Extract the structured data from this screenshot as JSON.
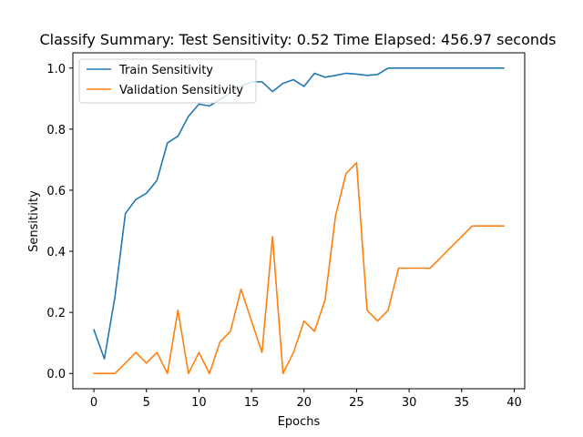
{
  "chart_data": {
    "type": "line",
    "title": "Classify Summary: Test Sensitivity: 0.52 Time Elapsed: 456.97 seconds",
    "xlabel": "Epochs",
    "ylabel": "Sensitivity",
    "xlim": [
      -2,
      41
    ],
    "ylim": [
      -0.05,
      1.05
    ],
    "xticks": [
      0,
      5,
      10,
      15,
      20,
      25,
      30,
      35,
      40
    ],
    "yticks": [
      0.0,
      0.2,
      0.4,
      0.6,
      0.8,
      1.0
    ],
    "xtick_labels": [
      "0",
      "5",
      "10",
      "15",
      "20",
      "25",
      "30",
      "35",
      "40"
    ],
    "ytick_labels": [
      "0.0",
      "0.2",
      "0.4",
      "0.6",
      "0.8",
      "1.0"
    ],
    "grid": false,
    "legend": "upper-left",
    "x": [
      0,
      1,
      2,
      3,
      4,
      5,
      6,
      7,
      8,
      9,
      10,
      11,
      12,
      13,
      14,
      15,
      16,
      17,
      18,
      19,
      20,
      21,
      22,
      23,
      24,
      25,
      26,
      27,
      28,
      29,
      30,
      31,
      32,
      33,
      34,
      35,
      36,
      37,
      38,
      39
    ],
    "series": [
      {
        "name": "Train Sensitivity",
        "color": "#1f77b4",
        "values": [
          0.143,
          0.048,
          0.25,
          0.524,
          0.57,
          0.59,
          0.632,
          0.755,
          0.777,
          0.842,
          0.882,
          0.876,
          0.897,
          0.92,
          0.94,
          0.955,
          0.955,
          0.923,
          0.95,
          0.962,
          0.94,
          0.983,
          0.97,
          0.976,
          0.983,
          0.98,
          0.976,
          0.979,
          1.0,
          1.0,
          1.0,
          1.0,
          1.0,
          1.0,
          1.0,
          1.0,
          1.0,
          1.0,
          1.0,
          1.0
        ]
      },
      {
        "name": "Validation Sensitivity",
        "color": "#ff7f0e",
        "values": [
          0.0,
          0.0,
          0.0,
          0.034,
          0.069,
          0.034,
          0.069,
          0.0,
          0.207,
          0.0,
          0.069,
          0.0,
          0.103,
          0.138,
          0.276,
          0.172,
          0.069,
          0.448,
          0.0,
          0.069,
          0.172,
          0.138,
          0.241,
          0.517,
          0.655,
          0.69,
          0.207,
          0.172,
          0.207,
          0.345,
          0.345,
          0.345,
          0.345,
          0.379,
          0.414,
          0.448,
          0.483,
          0.483,
          0.483,
          0.483
        ]
      }
    ]
  }
}
